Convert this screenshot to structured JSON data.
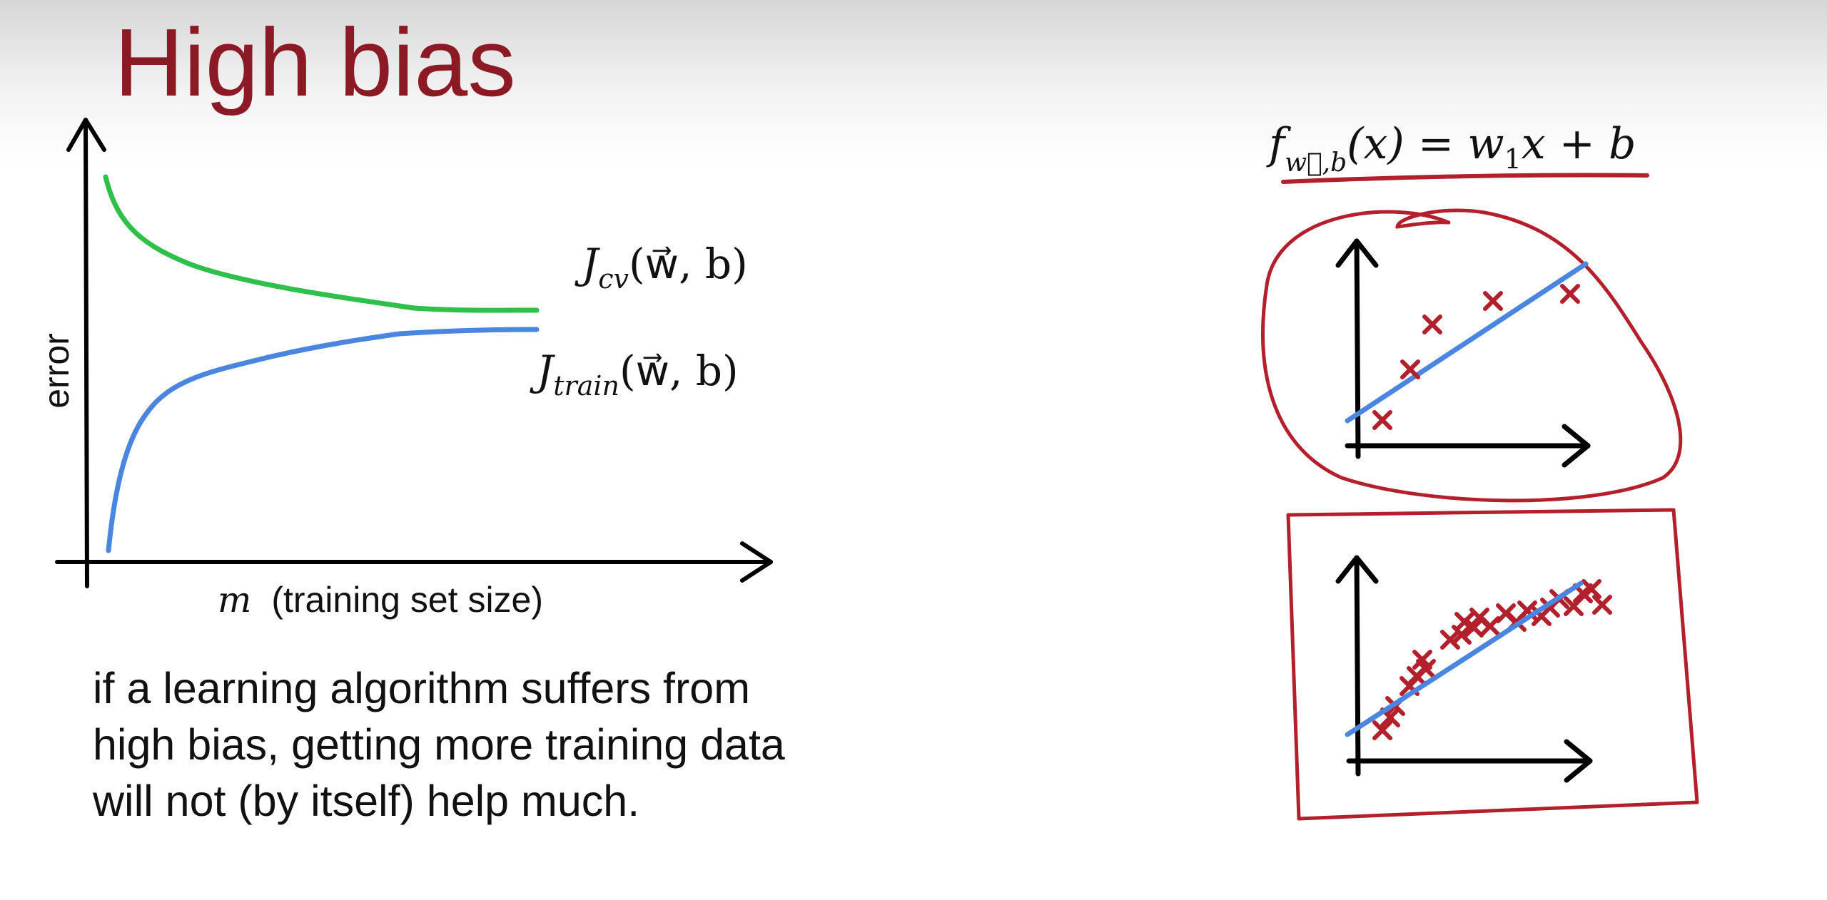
{
  "slide": {
    "title": "High bias",
    "caption": "if a learning algorithm suffers from high bias, getting more training data will not (by itself) help much."
  },
  "learning_curve": {
    "y_axis_label": "error",
    "x_axis_var": "m",
    "x_axis_label": "(training set size)",
    "cv_curve": {
      "J": "J",
      "sub": "cv",
      "args": "(w⃗, b)",
      "color": "#2ec04a"
    },
    "train_curve": {
      "J": "J",
      "sub": "train",
      "args": "(w⃗, b)",
      "color": "#4a86e0"
    }
  },
  "model": {
    "f": "f",
    "sub": "w⃗,b",
    "rhs_left": "(x) = w",
    "w_sub": "1",
    "rhs_right": "x + b",
    "annotation_color": "#b3202c"
  },
  "colors": {
    "title": "#8b1a24",
    "annotation": "#b3202c",
    "points": "#b3202c",
    "fit_line": "#4a86e0",
    "axes": "#000000"
  },
  "icons": [
    "cross-marker-icon",
    "arrowhead-icon"
  ]
}
